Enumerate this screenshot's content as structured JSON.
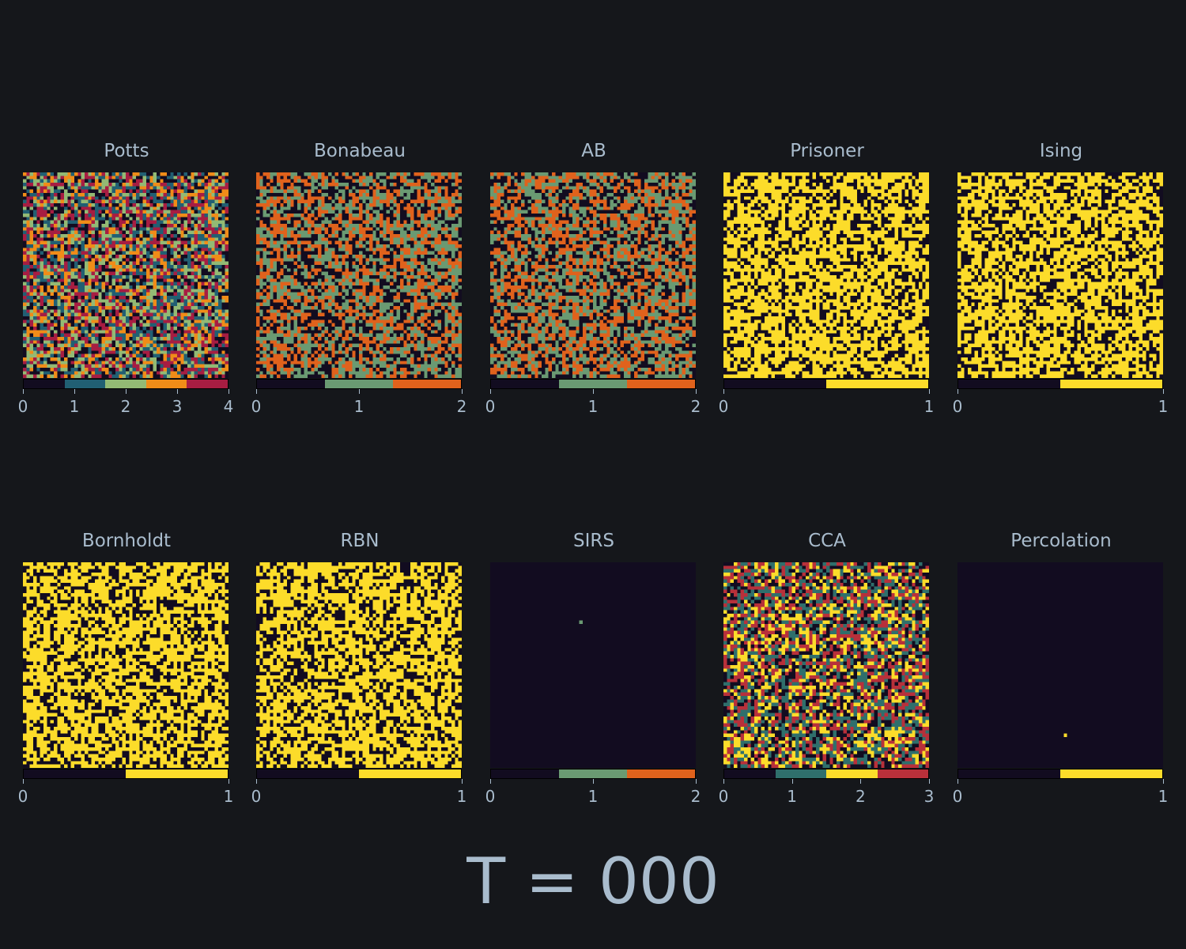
{
  "chart_data": [
    {
      "type": "heatmap",
      "title": "Potts",
      "grid_size": 60,
      "colorbar_ticks": [
        "0",
        "1",
        "2",
        "3",
        "4"
      ],
      "colors": [
        "#120c20",
        "#215f73",
        "#93ba74",
        "#f08c18",
        "#a71d42"
      ],
      "pattern": "random",
      "weights": [
        0.2,
        0.2,
        0.2,
        0.2,
        0.2
      ]
    },
    {
      "type": "heatmap",
      "title": "Bonabeau",
      "grid_size": 60,
      "colorbar_ticks": [
        "0",
        "1",
        "2"
      ],
      "colors": [
        "#120c20",
        "#6a9a72",
        "#e0621c"
      ],
      "pattern": "random",
      "weights": [
        0.33,
        0.33,
        0.34
      ]
    },
    {
      "type": "heatmap",
      "title": "AB",
      "grid_size": 60,
      "colorbar_ticks": [
        "0",
        "1",
        "2"
      ],
      "colors": [
        "#120c20",
        "#6a9a72",
        "#e0621c"
      ],
      "pattern": "random",
      "weights": [
        0.33,
        0.33,
        0.34
      ]
    },
    {
      "type": "heatmap",
      "title": "Prisoner",
      "grid_size": 60,
      "colorbar_ticks": [
        "0",
        "1"
      ],
      "colors": [
        "#120c20",
        "#fcdc2a"
      ],
      "pattern": "random",
      "weights": [
        0.35,
        0.65
      ]
    },
    {
      "type": "heatmap",
      "title": "Ising",
      "grid_size": 60,
      "colorbar_ticks": [
        "0",
        "1"
      ],
      "colors": [
        "#120c20",
        "#fcdc2a"
      ],
      "pattern": "random",
      "weights": [
        0.35,
        0.65
      ]
    },
    {
      "type": "heatmap",
      "title": "Bornholdt",
      "grid_size": 60,
      "colorbar_ticks": [
        "0",
        "1"
      ],
      "colors": [
        "#120c20",
        "#fcdc2a"
      ],
      "pattern": "random",
      "weights": [
        0.35,
        0.65
      ]
    },
    {
      "type": "heatmap",
      "title": "RBN",
      "grid_size": 60,
      "colorbar_ticks": [
        "0",
        "1"
      ],
      "colors": [
        "#120c20",
        "#fcdc2a"
      ],
      "pattern": "random",
      "weights": [
        0.35,
        0.65
      ]
    },
    {
      "type": "heatmap",
      "title": "SIRS",
      "grid_size": 60,
      "colorbar_ticks": [
        "0",
        "1",
        "2"
      ],
      "colors": [
        "#120c20",
        "#6a9a72",
        "#e0621c"
      ],
      "pattern": "single",
      "seed_cell": {
        "row": 17,
        "col": 26,
        "state": 1
      }
    },
    {
      "type": "heatmap",
      "title": "CCA",
      "grid_size": 60,
      "colorbar_ticks": [
        "0",
        "1",
        "2",
        "3"
      ],
      "colors": [
        "#120c20",
        "#2f6f6c",
        "#fcdc2a",
        "#b8303a"
      ],
      "pattern": "random",
      "weights": [
        0.25,
        0.25,
        0.25,
        0.25
      ]
    },
    {
      "type": "heatmap",
      "title": "Percolation",
      "grid_size": 60,
      "colorbar_ticks": [
        "0",
        "1"
      ],
      "colors": [
        "#120c20",
        "#fcdc2a"
      ],
      "pattern": "single",
      "seed_cell": {
        "row": 50,
        "col": 31,
        "state": 1
      }
    }
  ],
  "time_label": "T = 000"
}
